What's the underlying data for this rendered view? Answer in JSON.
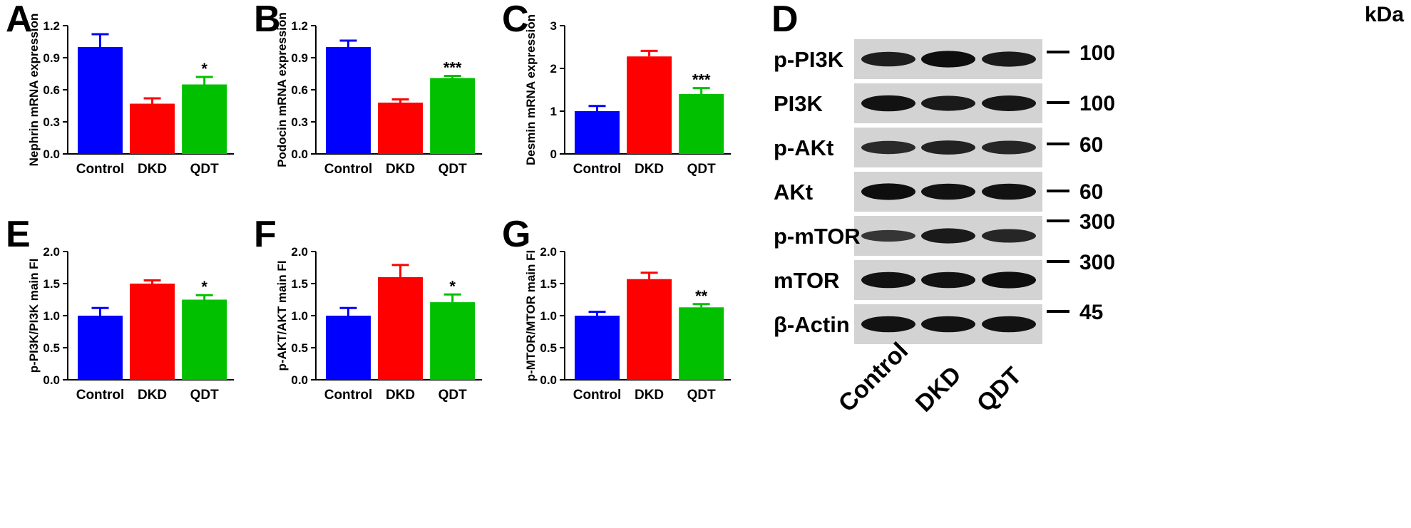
{
  "colors": {
    "Control": "#0000ff",
    "DKD": "#ff0000",
    "QDT": "#00c000"
  },
  "chart_data": [
    {
      "panel": "A",
      "type": "bar",
      "categories": [
        "Control",
        "DKD",
        "QDT"
      ],
      "values": [
        1.0,
        0.47,
        0.65
      ],
      "errors": [
        0.12,
        0.05,
        0.07
      ],
      "significance": [
        "",
        "",
        "*"
      ],
      "ylabel": "Nephrin mRNA expression",
      "ylim": [
        0,
        1.2
      ],
      "yticks": [
        "0.0",
        "0.3",
        "0.6",
        "0.9",
        "1.2"
      ]
    },
    {
      "panel": "B",
      "type": "bar",
      "categories": [
        "Control",
        "DKD",
        "QDT"
      ],
      "values": [
        1.0,
        0.48,
        0.71
      ],
      "errors": [
        0.06,
        0.03,
        0.02
      ],
      "significance": [
        "",
        "",
        "***"
      ],
      "ylabel": "Podocin mRNA expression",
      "ylim": [
        0,
        1.2
      ],
      "yticks": [
        "0.0",
        "0.3",
        "0.6",
        "0.9",
        "1.2"
      ]
    },
    {
      "panel": "C",
      "type": "bar",
      "categories": [
        "Control",
        "DKD",
        "QDT"
      ],
      "values": [
        1.0,
        2.28,
        1.4
      ],
      "errors": [
        0.12,
        0.13,
        0.14
      ],
      "significance": [
        "",
        "",
        "***"
      ],
      "ylabel": "Desmin mRNA expression",
      "ylim": [
        0,
        3
      ],
      "yticks": [
        "0",
        "1",
        "2",
        "3"
      ]
    },
    {
      "panel": "E",
      "type": "bar",
      "categories": [
        "Control",
        "DKD",
        "QDT"
      ],
      "values": [
        1.0,
        1.5,
        1.25
      ],
      "errors": [
        0.12,
        0.05,
        0.07
      ],
      "significance": [
        "",
        "",
        "*"
      ],
      "ylabel": "p-PI3K/PI3K main FI",
      "ylim": [
        0,
        2.0
      ],
      "yticks": [
        "0.0",
        "0.5",
        "1.0",
        "1.5",
        "2.0"
      ]
    },
    {
      "panel": "F",
      "type": "bar",
      "categories": [
        "Control",
        "DKD",
        "QDT"
      ],
      "values": [
        1.0,
        1.6,
        1.21
      ],
      "errors": [
        0.12,
        0.19,
        0.12
      ],
      "significance": [
        "",
        "",
        "*"
      ],
      "ylabel": "p-AKT/AKT main FI",
      "ylim": [
        0,
        2.0
      ],
      "yticks": [
        "0.0",
        "0.5",
        "1.0",
        "1.5",
        "2.0"
      ]
    },
    {
      "panel": "G",
      "type": "bar",
      "categories": [
        "Control",
        "DKD",
        "QDT"
      ],
      "values": [
        1.0,
        1.57,
        1.13
      ],
      "errors": [
        0.06,
        0.1,
        0.05
      ],
      "significance": [
        "",
        "",
        "**"
      ],
      "ylabel": "p-MTOR/MTOR main FI",
      "ylim": [
        0,
        2.0
      ],
      "yticks": [
        "0.0",
        "0.5",
        "1.0",
        "1.5",
        "2.0"
      ]
    }
  ],
  "western_blot": {
    "panel": "D",
    "unit_label": "kDa",
    "lanes": [
      "Control",
      "DKD",
      "QDT"
    ],
    "rows": [
      {
        "protein": "p-PI3K",
        "marker": "100",
        "intensity": [
          0.75,
          0.95,
          0.8
        ]
      },
      {
        "protein": "PI3K",
        "marker": "100",
        "intensity": [
          0.9,
          0.8,
          0.85
        ]
      },
      {
        "protein": "p-AKt",
        "marker": "60",
        "intensity": [
          0.6,
          0.7,
          0.65
        ]
      },
      {
        "protein": "AKt",
        "marker": "60",
        "intensity": [
          0.95,
          0.9,
          0.9
        ]
      },
      {
        "protein": "p-mTOR",
        "marker": "300",
        "intensity": [
          0.45,
          0.8,
          0.65
        ]
      },
      {
        "protein": "mTOR",
        "marker": "300",
        "intensity": [
          0.9,
          0.9,
          0.95
        ]
      },
      {
        "protein": "β-Actin",
        "marker": "45",
        "intensity": [
          0.9,
          0.9,
          0.9
        ]
      }
    ]
  }
}
